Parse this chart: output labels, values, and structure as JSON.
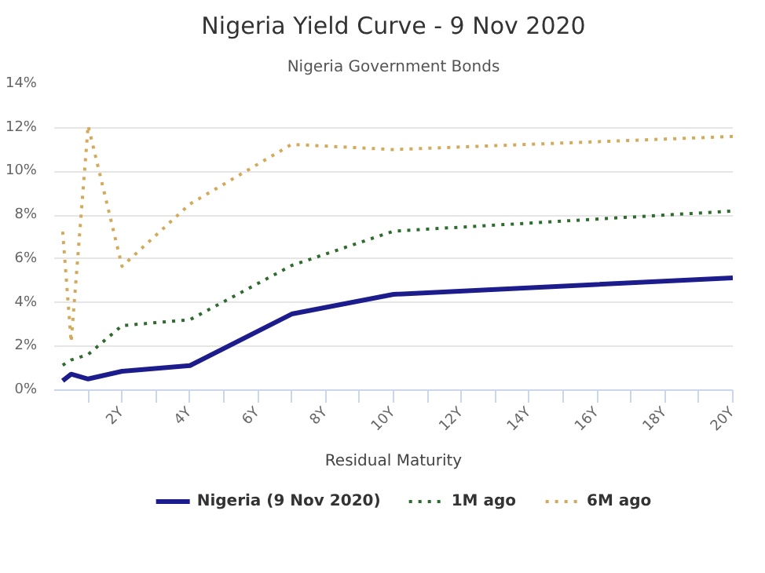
{
  "chart_data": {
    "type": "line",
    "title": "Nigeria Yield Curve - 9 Nov 2020",
    "subtitle": "Nigeria Government Bonds",
    "xlabel": "Residual Maturity",
    "x": [
      0.25,
      0.5,
      1,
      2,
      4,
      7,
      10,
      20
    ],
    "series": [
      {
        "name": "Nigeria (9 Nov 2020)",
        "color": "#1c1c8c",
        "line_style": "solid",
        "values": [
          0.43,
          0.73,
          0.51,
          0.86,
          1.12,
          3.48,
          4.38,
          5.13
        ]
      },
      {
        "name": "1M ago",
        "color": "#2e6b2e",
        "line_style": "dotted",
        "values": [
          1.14,
          1.38,
          1.63,
          2.95,
          3.22,
          5.7,
          7.27,
          8.19
        ]
      },
      {
        "name": "6M ago",
        "color": "#d4aa5a",
        "line_style": "dotted",
        "values": [
          7.25,
          2.2,
          12.1,
          5.66,
          8.51,
          11.24,
          11.0,
          11.6
        ]
      }
    ],
    "xlim": [
      0,
      20
    ],
    "xticks": [
      {
        "value": 1,
        "label": null
      },
      {
        "value": 2,
        "label": "2Y"
      },
      {
        "value": 3,
        "label": null
      },
      {
        "value": 4,
        "label": "4Y"
      },
      {
        "value": 5,
        "label": null
      },
      {
        "value": 6,
        "label": "6Y"
      },
      {
        "value": 7,
        "label": null
      },
      {
        "value": 8,
        "label": "8Y"
      },
      {
        "value": 9,
        "label": null
      },
      {
        "value": 10,
        "label": "10Y"
      },
      {
        "value": 11,
        "label": null
      },
      {
        "value": 12,
        "label": "12Y"
      },
      {
        "value": 13,
        "label": null
      },
      {
        "value": 14,
        "label": "14Y"
      },
      {
        "value": 15,
        "label": null
      },
      {
        "value": 16,
        "label": "16Y"
      },
      {
        "value": 17,
        "label": null
      },
      {
        "value": 18,
        "label": "18Y"
      },
      {
        "value": 19,
        "label": null
      },
      {
        "value": 20,
        "label": "20Y"
      }
    ],
    "ylim": [
      0,
      14
    ],
    "yticks": [
      {
        "value": 0,
        "label": "0%"
      },
      {
        "value": 2,
        "label": "2%"
      },
      {
        "value": 4,
        "label": "4%"
      },
      {
        "value": 6,
        "label": "6%"
      },
      {
        "value": 8,
        "label": "8%"
      },
      {
        "value": 10,
        "label": "10%"
      },
      {
        "value": 12,
        "label": "12%"
      },
      {
        "value": 14,
        "label": "14%"
      }
    ],
    "grid": "y",
    "legend": "bottom",
    "marker": "none"
  }
}
